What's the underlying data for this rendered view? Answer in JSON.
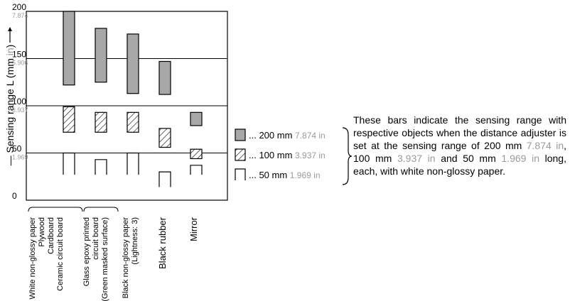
{
  "chart_data": {
    "type": "bar",
    "ylabel": "Sensing range L (mm in)",
    "ylim": [
      0,
      200
    ],
    "y_ticks": [
      {
        "mm": "200",
        "in": "7.874",
        "value": 200
      },
      {
        "mm": "150",
        "in": "5.906",
        "value": 150
      },
      {
        "mm": "100",
        "in": "3.937",
        "value": 100
      },
      {
        "mm": "50",
        "in": "1.969",
        "value": 50
      },
      {
        "mm": "0",
        "in": "",
        "value": 0
      }
    ],
    "categories": [
      {
        "label": "White non-glossy paper"
      },
      {
        "label": "Plywood"
      },
      {
        "label": "Cardboard"
      },
      {
        "label": "Ceramic circuit board",
        "bars": {
          "200mm": [
            122,
            200
          ],
          "100mm": [
            72,
            99
          ],
          "50mm": [
            27,
            50
          ]
        }
      },
      {
        "label": "Glass epoxy printed circuit board (Green masked surface)",
        "bars": {
          "200mm": [
            125,
            182
          ],
          "100mm": [
            72,
            93
          ],
          "50mm": [
            27,
            43
          ]
        }
      },
      {
        "label": "Black non-glossy paper (Lightness: 3)",
        "bars": {
          "200mm": [
            113,
            176
          ],
          "100mm": [
            72,
            93
          ],
          "50mm": [
            27,
            50
          ]
        }
      },
      {
        "label": "Black rubber",
        "bars": {
          "200mm": [
            112,
            147
          ],
          "100mm": [
            56,
            76
          ],
          "50mm": [
            14,
            30
          ]
        }
      },
      {
        "label": "Mirror",
        "bars": {
          "200mm": [
            79,
            93
          ],
          "100mm": [
            44,
            54
          ],
          "50mm": [
            27,
            37
          ]
        }
      }
    ],
    "legend": [
      {
        "key": "200mm",
        "mm": "200 mm",
        "in": "7.874 in",
        "pattern": "gray"
      },
      {
        "key": "100mm",
        "mm": "100 mm",
        "in": "3.937 in",
        "pattern": "hatched"
      },
      {
        "key": "50mm",
        "mm": "50 mm",
        "in": "1.969 in",
        "pattern": "open"
      }
    ],
    "grid": true,
    "legend_position": "right"
  },
  "note": {
    "part1": "These bars indicate the sensing range with respective objects when the distance adjuster is set at the sensing range of 200 mm ",
    "in200": "7.874 in",
    "part2": ", 100 mm ",
    "in100": "3.937 in",
    "part3": " and 50 mm ",
    "in50": "1.969 in",
    "part4": " long, each, with white non-glossy paper."
  },
  "colors": {
    "gray_fill": "#a8a8a8",
    "inch_text": "#9a9a9a",
    "line": "#000000"
  }
}
